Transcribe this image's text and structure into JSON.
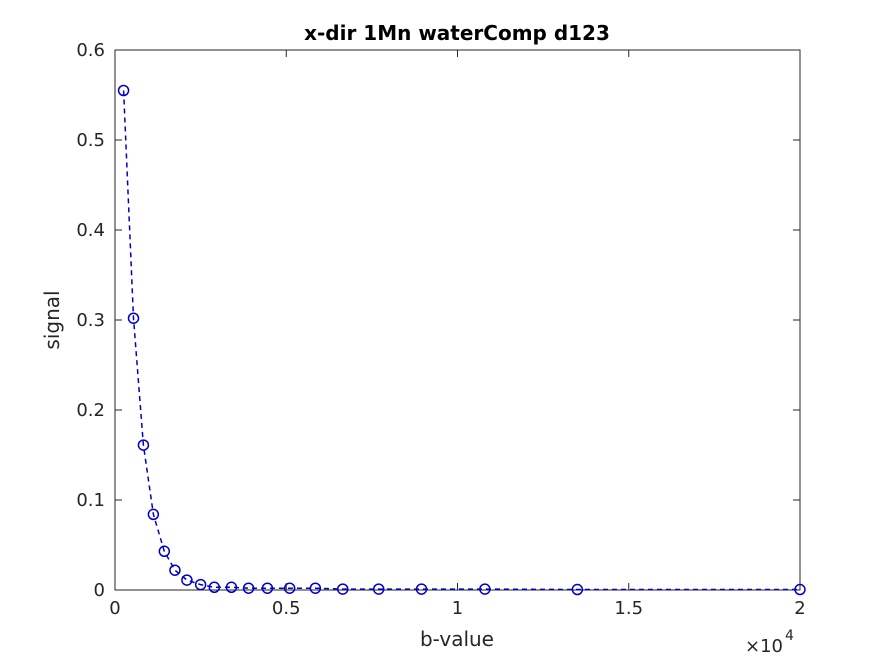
{
  "chart_data": {
    "type": "line",
    "title": "x-dir 1Mn waterComp d123",
    "xlabel": "b-value",
    "ylabel": "signal",
    "x_exponent_label": "×10",
    "x_exponent_power": "4",
    "xlim": [
      0,
      20000
    ],
    "ylim": [
      0,
      0.6
    ],
    "xticks": [
      0,
      5000,
      10000,
      15000,
      20000
    ],
    "xtick_labels": [
      "0",
      "0.5",
      "1",
      "1.5",
      "2"
    ],
    "yticks": [
      0,
      0.1,
      0.2,
      0.3,
      0.4,
      0.5,
      0.6
    ],
    "ytick_labels": [
      "0",
      "0.1",
      "0.2",
      "0.3",
      "0.4",
      "0.5",
      "0.6"
    ],
    "grid": false,
    "series": [
      {
        "color": "#0000cc",
        "line_style": "dashed",
        "marker": "circle",
        "x": [
          250,
          540,
          830,
          1120,
          1440,
          1750,
          2100,
          2500,
          2900,
          3400,
          3900,
          4450,
          5100,
          5850,
          6650,
          7700,
          8950,
          10800,
          13500,
          20000
        ],
        "y": [
          0.555,
          0.302,
          0.161,
          0.084,
          0.043,
          0.022,
          0.011,
          0.006,
          0.003,
          0.003,
          0.002,
          0.002,
          0.002,
          0.002,
          0.001,
          0.001,
          0.001,
          0.001,
          0.0005,
          0.0005
        ]
      }
    ]
  }
}
